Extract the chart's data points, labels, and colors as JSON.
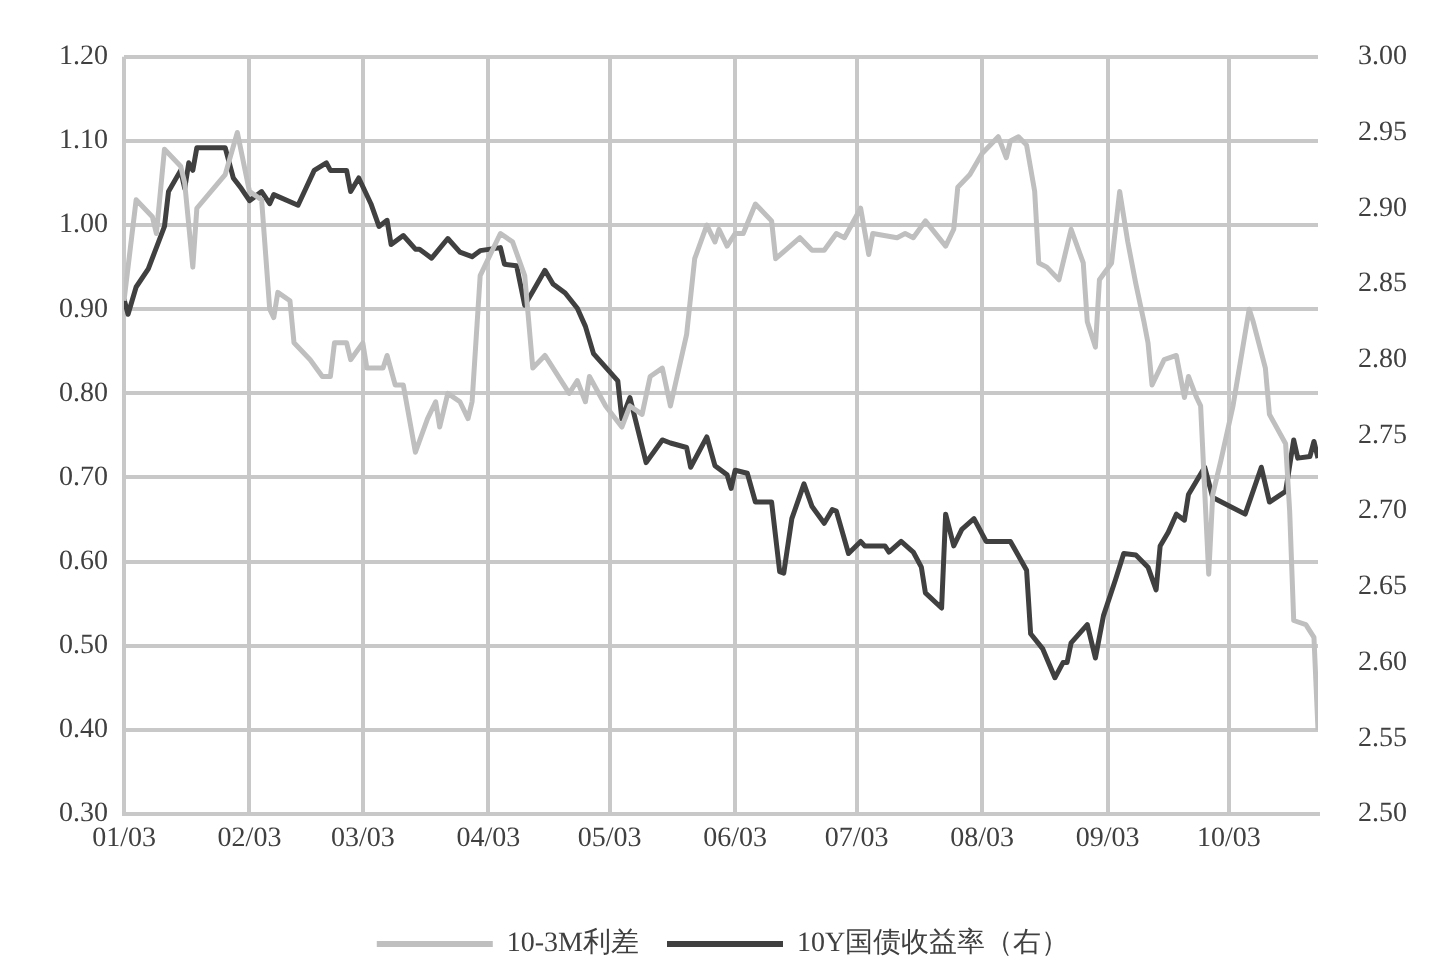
{
  "chart_data": {
    "type": "line",
    "xlim": [
      "--01-03",
      "--10-25"
    ],
    "xticks": [
      {
        "value": "--01-03",
        "label": "01/03"
      },
      {
        "value": "--02-03",
        "label": "02/03"
      },
      {
        "value": "--03-03",
        "label": "03/03"
      },
      {
        "value": "--04-03",
        "label": "04/03"
      },
      {
        "value": "--05-03",
        "label": "05/03"
      },
      {
        "value": "--06-03",
        "label": "06/03"
      },
      {
        "value": "--07-03",
        "label": "07/03"
      },
      {
        "value": "--08-03",
        "label": "08/03"
      },
      {
        "value": "--09-03",
        "label": "09/03"
      },
      {
        "value": "--10-03",
        "label": "10/03"
      }
    ],
    "ylim": [
      0.3,
      1.2
    ],
    "yticks": [
      {
        "value": 0.3,
        "label": "0.30"
      },
      {
        "value": 0.4,
        "label": "0.40"
      },
      {
        "value": 0.5,
        "label": "0.50"
      },
      {
        "value": 0.6,
        "label": "0.60"
      },
      {
        "value": 0.7,
        "label": "0.70"
      },
      {
        "value": 0.8,
        "label": "0.80"
      },
      {
        "value": 0.9,
        "label": "0.90"
      },
      {
        "value": 1.0,
        "label": "1.00"
      },
      {
        "value": 1.1,
        "label": "1.10"
      },
      {
        "value": 1.2,
        "label": "1.20"
      }
    ],
    "y2lim": [
      2.5,
      3.0
    ],
    "y2ticks": [
      {
        "value": 2.5,
        "label": "2.50"
      },
      {
        "value": 2.55,
        "label": "2.55"
      },
      {
        "value": 2.6,
        "label": "2.60"
      },
      {
        "value": 2.65,
        "label": "2.65"
      },
      {
        "value": 2.7,
        "label": "2.70"
      },
      {
        "value": 2.75,
        "label": "2.75"
      },
      {
        "value": 2.8,
        "label": "2.80"
      },
      {
        "value": 2.85,
        "label": "2.85"
      },
      {
        "value": 2.9,
        "label": "2.90"
      },
      {
        "value": 2.95,
        "label": "2.95"
      },
      {
        "value": 3.0,
        "label": "3.00"
      }
    ],
    "grid": true,
    "legend": "bottom",
    "marker": "none",
    "line_style": "solid",
    "series": [
      {
        "name": "10-3M利差",
        "color": "#bfbfbf",
        "x": [
          "--01-03",
          "--01-06",
          "--01-10",
          "--01-11",
          "--01-13",
          "--01-17",
          "--01-18",
          "--01-20",
          "--01-21",
          "--01-28",
          "--01-31",
          "--02-03",
          "--02-06",
          "--02-08",
          "--02-09",
          "--02-10",
          "--02-13",
          "--02-14",
          "--02-18",
          "--02-21",
          "--02-23",
          "--02-24",
          "--02-27",
          "--02-28",
          "--03-03",
          "--03-04",
          "--03-08",
          "--03-09",
          "--03-11",
          "--03-13",
          "--03-16",
          "--03-19",
          "--03-21",
          "--03-22",
          "--03-24",
          "--03-27",
          "--03-29",
          "--03-30",
          "--04-01",
          "--04-06",
          "--04-09",
          "--04-12",
          "--04-14",
          "--04-17",
          "--04-23",
          "--04-25",
          "--04-27",
          "--04-28",
          "--05-02",
          "--05-06",
          "--05-08",
          "--05-11",
          "--05-13",
          "--05-16",
          "--05-18",
          "--05-22",
          "--05-24",
          "--05-27",
          "--05-29",
          "--05-30",
          "--06-01",
          "--06-03",
          "--06-05",
          "--06-08",
          "--06-12",
          "--06-13",
          "--06-19",
          "--06-22",
          "--06-25",
          "--06-28",
          "--06-30",
          "--07-04",
          "--07-06",
          "--07-07",
          "--07-13",
          "--07-15",
          "--07-17",
          "--07-20",
          "--07-25",
          "--07-27",
          "--07-28",
          "--07-31",
          "--08-03",
          "--08-07",
          "--08-09",
          "--08-10",
          "--08-12",
          "--08-14",
          "--08-16",
          "--08-17",
          "--08-19",
          "--08-22",
          "--08-25",
          "--08-28",
          "--08-29",
          "--08-31",
          "--09-01",
          "--09-04",
          "--09-06",
          "--09-08",
          "--09-10",
          "--09-12",
          "--09-13",
          "--09-14",
          "--09-17",
          "--09-20",
          "--09-22",
          "--09-23",
          "--09-25",
          "--09-26",
          "--09-28",
          "--09-29",
          "--10-01",
          "--10-04",
          "--10-08",
          "--10-09",
          "--10-12",
          "--10-13",
          "--10-17",
          "--10-18",
          "--10-19",
          "--10-22",
          "--10-24",
          "--10-25"
        ],
        "values": [
          0.91,
          1.03,
          1.01,
          0.99,
          1.09,
          1.07,
          1.05,
          0.95,
          1.02,
          1.06,
          1.11,
          1.04,
          1.03,
          0.9,
          0.89,
          0.92,
          0.91,
          0.86,
          0.84,
          0.82,
          0.82,
          0.86,
          0.86,
          0.84,
          0.86,
          0.83,
          0.83,
          0.845,
          0.81,
          0.81,
          0.73,
          0.77,
          0.79,
          0.76,
          0.8,
          0.79,
          0.77,
          0.79,
          0.94,
          0.99,
          0.98,
          0.94,
          0.83,
          0.845,
          0.8,
          0.815,
          0.79,
          0.82,
          0.785,
          0.76,
          0.785,
          0.775,
          0.82,
          0.83,
          0.785,
          0.87,
          0.96,
          1.0,
          0.98,
          0.995,
          0.975,
          0.99,
          0.99,
          1.025,
          1.005,
          0.96,
          0.985,
          0.97,
          0.97,
          0.99,
          0.985,
          1.02,
          0.965,
          0.99,
          0.985,
          0.99,
          0.985,
          1.005,
          0.975,
          0.995,
          1.045,
          1.06,
          1.085,
          1.105,
          1.08,
          1.1,
          1.105,
          1.095,
          1.04,
          0.955,
          0.95,
          0.935,
          0.995,
          0.955,
          0.885,
          0.855,
          0.935,
          0.955,
          1.04,
          0.98,
          0.93,
          0.885,
          0.86,
          0.81,
          0.84,
          0.845,
          0.795,
          0.82,
          0.795,
          0.785,
          0.585,
          0.68,
          0.72,
          0.785,
          0.9,
          0.885,
          0.83,
          0.775,
          0.74,
          0.66,
          0.53,
          0.525,
          0.51,
          0.4
        ]
      },
      {
        "name": "10Y国债收益率（右）",
        "color": "#404040",
        "axis": "y2",
        "x": [
          "--01-03",
          "--01-04",
          "--01-06",
          "--01-09",
          "--01-11",
          "--01-13",
          "--01-14",
          "--01-17",
          "--01-18",
          "--01-19",
          "--01-20",
          "--01-21",
          "--01-28",
          "--01-30",
          "--02-01",
          "--02-03",
          "--02-06",
          "--02-08",
          "--02-09",
          "--02-15",
          "--02-19",
          "--02-22",
          "--02-23",
          "--02-27",
          "--02-28",
          "--03-02",
          "--03-05",
          "--03-07",
          "--03-09",
          "--03-10",
          "--03-13",
          "--03-16",
          "--03-17",
          "--03-20",
          "--03-24",
          "--03-27",
          "--03-30",
          "--04-01",
          "--04-06",
          "--04-07",
          "--04-10",
          "--04-12",
          "--04-14",
          "--04-17",
          "--04-19",
          "--04-22",
          "--04-25",
          "--04-27",
          "--04-29",
          "--05-05",
          "--05-06",
          "--05-08",
          "--05-12",
          "--05-16",
          "--05-18",
          "--05-22",
          "--05-23",
          "--05-27",
          "--05-29",
          "--06-01",
          "--06-02",
          "--06-03",
          "--06-06",
          "--06-08",
          "--06-12",
          "--06-14",
          "--06-15",
          "--06-17",
          "--06-20",
          "--06-22",
          "--06-25",
          "--06-27",
          "--06-28",
          "--07-01",
          "--07-04",
          "--07-05",
          "--07-10",
          "--07-11",
          "--07-14",
          "--07-17",
          "--07-19",
          "--07-20",
          "--07-24",
          "--07-25",
          "--07-27",
          "--07-29",
          "--08-01",
          "--08-04",
          "--08-10",
          "--08-14",
          "--08-15",
          "--08-18",
          "--08-21",
          "--08-23",
          "--08-24",
          "--08-25",
          "--08-29",
          "--08-31",
          "--09-02",
          "--09-05",
          "--09-07",
          "--09-10",
          "--09-13",
          "--09-15",
          "--09-16",
          "--09-18",
          "--09-20",
          "--09-22",
          "--09-23",
          "--09-27",
          "--09-29",
          "--10-07",
          "--10-11",
          "--10-13",
          "--10-17",
          "--10-19",
          "--10-20",
          "--10-23",
          "--10-24",
          "--10-25"
        ],
        "values": [
          2.84,
          2.83,
          2.848,
          2.86,
          2.874,
          2.888,
          2.911,
          2.925,
          2.913,
          2.93,
          2.925,
          2.94,
          2.94,
          2.92,
          2.913,
          2.905,
          2.911,
          2.903,
          2.909,
          2.902,
          2.925,
          2.93,
          2.925,
          2.925,
          2.911,
          2.92,
          2.903,
          2.888,
          2.892,
          2.876,
          2.882,
          2.873,
          2.873,
          2.867,
          2.88,
          2.871,
          2.868,
          2.872,
          2.874,
          2.863,
          2.862,
          2.836,
          2.845,
          2.859,
          2.85,
          2.844,
          2.834,
          2.822,
          2.804,
          2.786,
          2.761,
          2.775,
          2.732,
          2.747,
          2.745,
          2.742,
          2.729,
          2.749,
          2.73,
          2.724,
          2.715,
          2.727,
          2.725,
          2.706,
          2.706,
          2.66,
          2.659,
          2.695,
          2.718,
          2.703,
          2.692,
          2.701,
          2.7,
          2.672,
          2.68,
          2.677,
          2.677,
          2.673,
          2.68,
          2.673,
          2.663,
          2.646,
          2.636,
          2.698,
          2.677,
          2.688,
          2.695,
          2.68,
          2.68,
          2.661,
          2.619,
          2.609,
          2.59,
          2.6,
          2.6,
          2.613,
          2.625,
          2.603,
          2.631,
          2.655,
          2.672,
          2.671,
          2.663,
          2.648,
          2.677,
          2.686,
          2.698,
          2.694,
          2.711,
          2.729,
          2.709,
          2.698,
          2.729,
          2.706,
          2.713,
          2.747,
          2.735,
          2.736,
          2.746,
          2.735
        ]
      }
    ]
  }
}
